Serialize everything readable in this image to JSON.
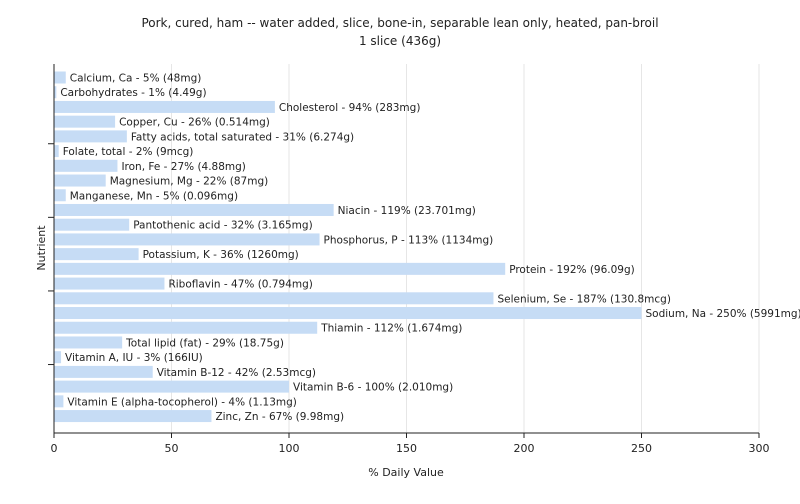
{
  "chart_data": {
    "type": "bar",
    "orientation": "horizontal",
    "title": "Pork, cured, ham -- water added, slice, bone-in, separable lean only, heated, pan-broil",
    "subtitle": "1 slice (436g)",
    "xlabel": "% Daily Value",
    "ylabel": "Nutrient",
    "xlim": [
      0,
      300
    ],
    "xticks": [
      0,
      50,
      100,
      150,
      200,
      250,
      300
    ],
    "grid": true,
    "bar_color": "#c6dcf5",
    "categories": [
      "Calcium, Ca",
      "Carbohydrates",
      "Cholesterol",
      "Copper, Cu",
      "Fatty acids, total saturated",
      "Folate, total",
      "Iron, Fe",
      "Magnesium, Mg",
      "Manganese, Mn",
      "Niacin",
      "Pantothenic acid",
      "Phosphorus, P",
      "Potassium, K",
      "Protein",
      "Riboflavin",
      "Selenium, Se",
      "Sodium, Na",
      "Thiamin",
      "Total lipid (fat)",
      "Vitamin A, IU",
      "Vitamin B-12",
      "Vitamin B-6",
      "Vitamin E (alpha-tocopherol)",
      "Zinc, Zn"
    ],
    "values": [
      5,
      1,
      94,
      26,
      31,
      2,
      27,
      22,
      5,
      119,
      32,
      113,
      36,
      192,
      47,
      187,
      250,
      112,
      29,
      3,
      42,
      100,
      4,
      67
    ],
    "labels": [
      "Calcium, Ca - 5% (48mg)",
      "Carbohydrates - 1% (4.49g)",
      "Cholesterol - 94% (283mg)",
      "Copper, Cu - 26% (0.514mg)",
      "Fatty acids, total saturated - 31% (6.274g)",
      "Folate, total - 2% (9mcg)",
      "Iron, Fe - 27% (4.88mg)",
      "Magnesium, Mg - 22% (87mg)",
      "Manganese, Mn - 5% (0.096mg)",
      "Niacin - 119% (23.701mg)",
      "Pantothenic acid - 32% (3.165mg)",
      "Phosphorus, P - 113% (1134mg)",
      "Potassium, K - 36% (1260mg)",
      "Protein - 192% (96.09g)",
      "Riboflavin - 47% (0.794mg)",
      "Selenium, Se - 187% (130.8mcg)",
      "Sodium, Na - 250% (5991mg)",
      "Thiamin - 112% (1.674mg)",
      "Total lipid (fat) - 29% (18.75g)",
      "Vitamin A, IU - 3% (166IU)",
      "Vitamin B-12 - 42% (2.53mcg)",
      "Vitamin B-6 - 100% (2.010mg)",
      "Vitamin E (alpha-tocopherol) - 4% (1.13mg)",
      "Zinc, Zn - 67% (9.98mg)"
    ]
  }
}
